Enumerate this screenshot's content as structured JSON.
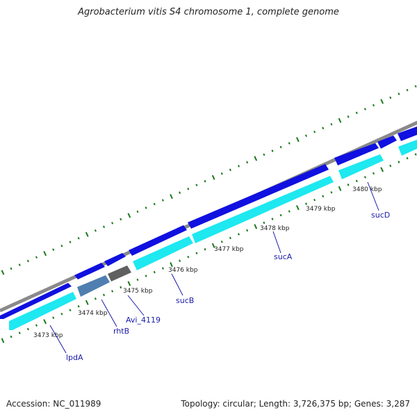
{
  "header": {
    "title": "Agrobacterium vitis S4 chromosome 1, complete genome"
  },
  "footer": {
    "accession": "Accession: NC_011989",
    "summary": "Topology: circular; Length: 3,726,375 bp; Genes: 3,287"
  },
  "colors": {
    "backbone": "#8a8a8a",
    "gene_forward": "#1010e0",
    "gene_reverse": "#1ee8f0",
    "gene_rhtB": "#4f7fb0",
    "gene_avi": "#606060",
    "ticks": "#1a7a1a",
    "label_line": "#1a1aa8"
  },
  "map": {
    "tick_labels": [
      "3473 kbp",
      "3474 kbp",
      "3475 kbp",
      "3476 kbp",
      "3477 kbp",
      "3478 kbp",
      "3479 kbp",
      "3480 kbp"
    ],
    "gene_labels": [
      "lpdA",
      "rhtB",
      "Avi_4119",
      "sucB",
      "sucA",
      "sucD"
    ]
  }
}
